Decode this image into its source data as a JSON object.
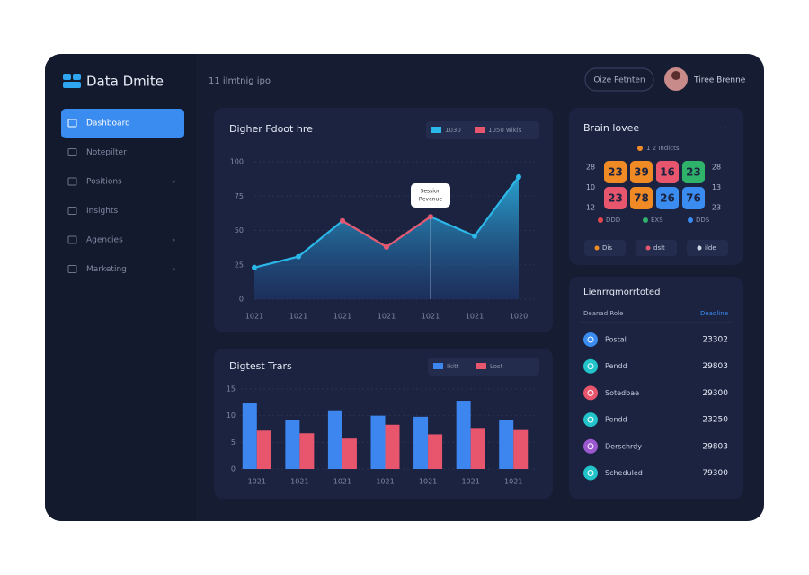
{
  "brand": "Data Dmite",
  "breadcrumb": "11 ilmtnig ipo",
  "top_button": "Oize Petnten",
  "user_name": "Tiree Brenne",
  "nav": [
    {
      "label": "Dashboard",
      "active": true
    },
    {
      "label": "Notepilter",
      "active": false
    },
    {
      "label": "Positions",
      "active": false
    },
    {
      "label": "Insights",
      "active": false
    },
    {
      "label": "Agencies",
      "active": false
    },
    {
      "label": "Marketing",
      "active": false
    }
  ],
  "area_chart": {
    "type": "area",
    "title": "Digher Fdoot hre",
    "categories": [
      "1021",
      "1021",
      "1021",
      "1021",
      "1021",
      "1021",
      "1020"
    ],
    "series": [
      {
        "name": "1030",
        "color": "#2bb7e8",
        "values": [
          23,
          31,
          57,
          38,
          60,
          46,
          89
        ]
      },
      {
        "name": "1050 wikis",
        "color": "#e8566e",
        "values": [
          null,
          null,
          57,
          38,
          60,
          null,
          null
        ]
      }
    ],
    "ylim": [
      0,
      100
    ],
    "yticks": [
      0,
      25,
      50,
      75,
      100
    ],
    "grid": true,
    "tooltip": [
      "Session",
      "Revenue"
    ]
  },
  "bar_chart": {
    "type": "bar",
    "title": "Digtest Trars",
    "categories": [
      "1021",
      "1021",
      "1021",
      "1021",
      "1021",
      "1021",
      "1021"
    ],
    "series": [
      {
        "name": "Ikitt",
        "color": "#3d86f0",
        "values": [
          12.3,
          9.2,
          11,
          10,
          9.8,
          12.8,
          9.2
        ]
      },
      {
        "name": "Lost",
        "color": "#e8566e",
        "values": [
          7.2,
          6.7,
          5.7,
          8.3,
          6.5,
          7.7,
          7.3
        ]
      }
    ],
    "ylim": [
      0,
      15
    ],
    "yticks": [
      0,
      5,
      10,
      15
    ],
    "grid": true
  },
  "calendar": {
    "title": "Brain lovee",
    "subtitle": "1 2 Indicts",
    "left_labels": [
      "28",
      "10",
      "12"
    ],
    "right_labels": [
      "28",
      "13",
      "23"
    ],
    "tiles": [
      {
        "text": "23",
        "color": "#f08a24"
      },
      {
        "text": "39",
        "color": "#f08a24"
      },
      {
        "text": "16",
        "color": "#e8566e"
      },
      {
        "text": "23",
        "color": "#2fb36b"
      },
      {
        "text": "23",
        "color": "#e8566e"
      },
      {
        "text": "78",
        "color": "#f08a24"
      },
      {
        "text": "26",
        "color": "#3a8cf0"
      },
      {
        "text": "76",
        "color": "#3a8cf0"
      }
    ],
    "legend": [
      {
        "text": "DDD",
        "color": "#e5484d"
      },
      {
        "text": "EXS",
        "color": "#2fb36b"
      },
      {
        "text": "DDS",
        "color": "#3a8cf0"
      }
    ],
    "actions": [
      {
        "text": "Dis",
        "color": "#f08a24"
      },
      {
        "text": "dsit",
        "color": "#e8566e"
      },
      {
        "text": "ilde",
        "color": "#cfd6e6"
      }
    ]
  },
  "list": {
    "title": "Lienrrgmorrtoted",
    "header": [
      "Deanad Role",
      "Deadline"
    ],
    "rows": [
      {
        "name": "Postal",
        "value": "23302",
        "color": "#3a8cf0"
      },
      {
        "name": "Pendd",
        "value": "29803",
        "color": "#22c3c9"
      },
      {
        "name": "Sotedbae",
        "value": "29300",
        "color": "#e8566e"
      },
      {
        "name": "Pendd",
        "value": "23250",
        "color": "#22c3c9"
      },
      {
        "name": "Derschrdy",
        "value": "29803",
        "color": "#9b59d0"
      },
      {
        "name": "Scheduled",
        "value": "79300",
        "color": "#22c3c9"
      }
    ]
  }
}
